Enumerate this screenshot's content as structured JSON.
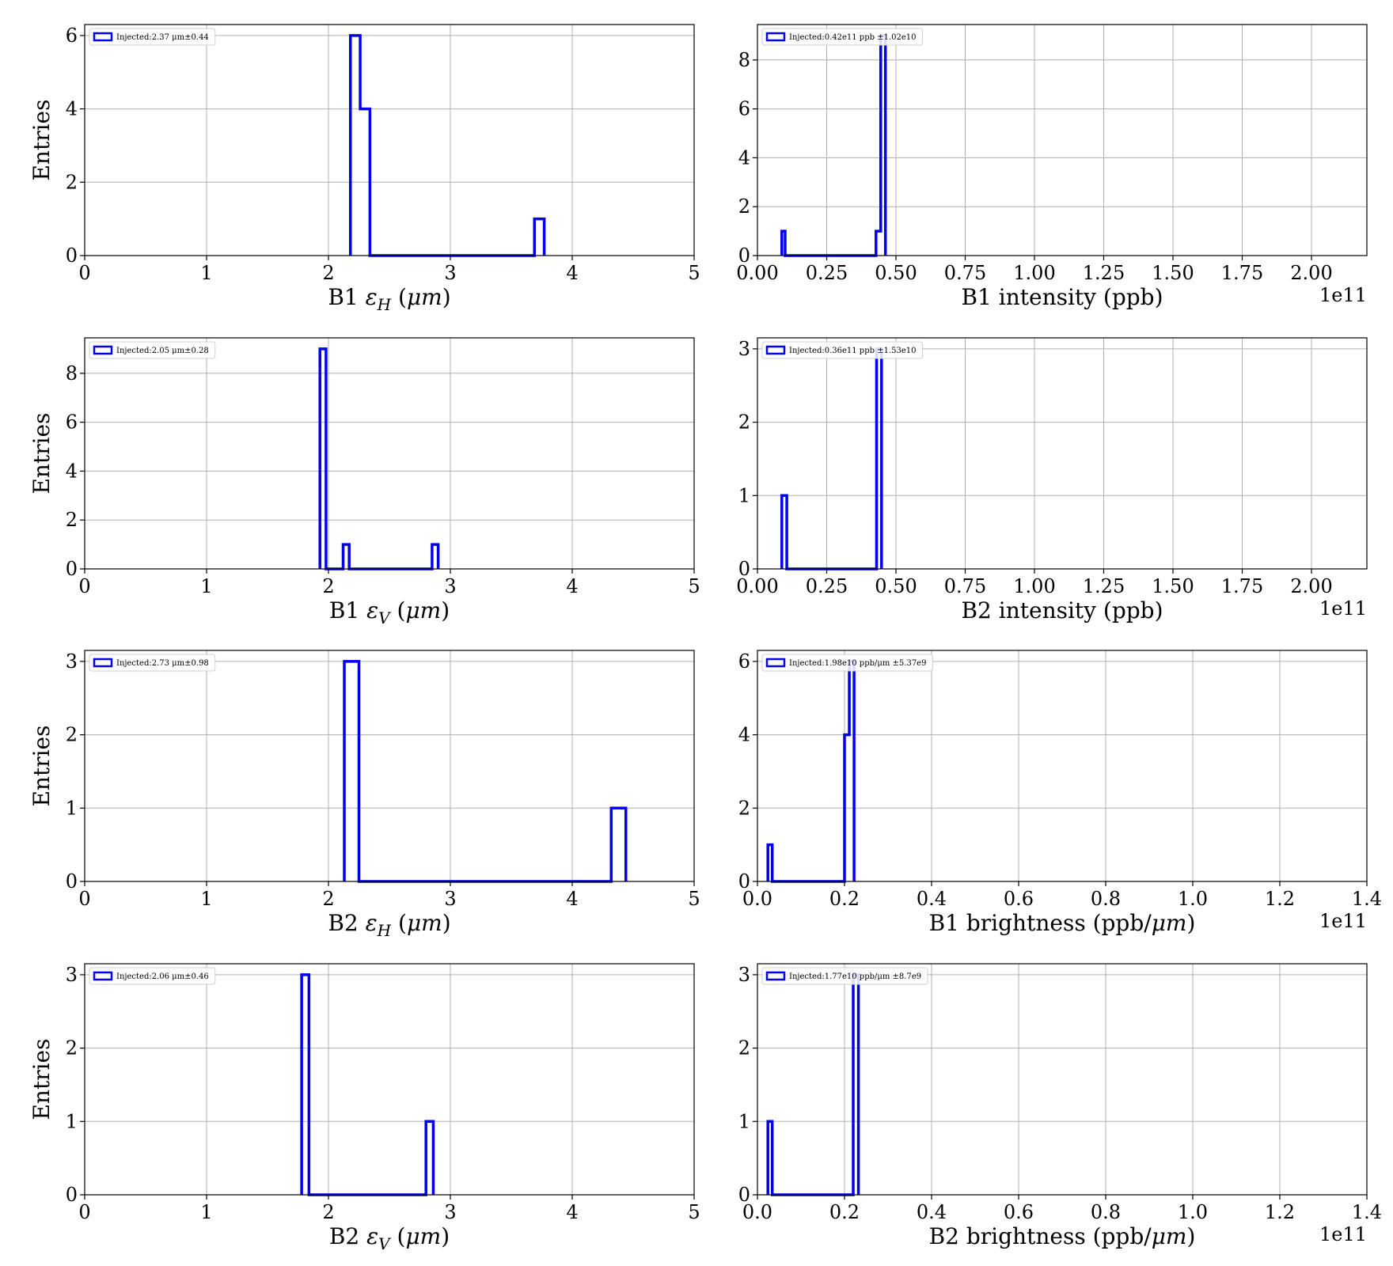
{
  "chart_data": [
    {
      "id": "b1-eh",
      "type": "histogram",
      "xlabel": {
        "pre": "B1 ",
        "sym": "ε",
        "sub": "H",
        "post": " (",
        "unit_it": "μm",
        "tail": ")"
      },
      "ylabel": "Entries",
      "xlim": [
        0,
        5
      ],
      "ylim": [
        0,
        6.3
      ],
      "xticks": [
        0,
        1,
        2,
        3,
        4,
        5
      ],
      "xtick_labels": [
        "0",
        "1",
        "2",
        "3",
        "4",
        "5"
      ],
      "yticks": [
        0,
        2,
        4,
        6
      ],
      "ytick_labels": [
        "0",
        "2",
        "4",
        "6"
      ],
      "offset_text": "",
      "grid": true,
      "legend": {
        "location": "upper-left",
        "label": "Injected:2.37 μm±0.44"
      },
      "color": "#0000ee",
      "bins": [
        [
          2.18,
          2.26,
          6
        ],
        [
          2.26,
          2.34,
          4
        ],
        [
          2.34,
          3.69,
          0
        ],
        [
          3.69,
          3.77,
          1
        ]
      ]
    },
    {
      "id": "b1-intensity",
      "type": "histogram",
      "xlabel": {
        "pre": "B1 intensity (ppb)"
      },
      "ylabel": "",
      "xlim": [
        0,
        2.2
      ],
      "ylim": [
        0,
        9.45
      ],
      "xticks": [
        0,
        0.25,
        0.5,
        0.75,
        1.0,
        1.25,
        1.5,
        1.75,
        2.0
      ],
      "xtick_labels": [
        "0.00",
        "0.25",
        "0.50",
        "0.75",
        "1.00",
        "1.25",
        "1.50",
        "1.75",
        "2.00"
      ],
      "yticks": [
        0,
        2,
        4,
        6,
        8
      ],
      "ytick_labels": [
        "0",
        "2",
        "4",
        "6",
        "8"
      ],
      "offset_text": "1e11",
      "grid": true,
      "legend": {
        "location": "upper-left",
        "label": "Injected:0.42e11 ppb ±1.02e10"
      },
      "color": "#0000ee",
      "bins": [
        [
          0.088,
          0.1,
          1
        ],
        [
          0.1,
          0.428,
          0
        ],
        [
          0.428,
          0.445,
          1
        ],
        [
          0.445,
          0.462,
          9
        ]
      ]
    },
    {
      "id": "b1-ev",
      "type": "histogram",
      "xlabel": {
        "pre": "B1 ",
        "sym": "ε",
        "sub": "V",
        "post": " (",
        "unit_it": "μm",
        "tail": ")"
      },
      "ylabel": "Entries",
      "xlim": [
        0,
        5
      ],
      "ylim": [
        0,
        9.45
      ],
      "xticks": [
        0,
        1,
        2,
        3,
        4,
        5
      ],
      "xtick_labels": [
        "0",
        "1",
        "2",
        "3",
        "4",
        "5"
      ],
      "yticks": [
        0,
        2,
        4,
        6,
        8
      ],
      "ytick_labels": [
        "0",
        "2",
        "4",
        "6",
        "8"
      ],
      "offset_text": "",
      "grid": true,
      "legend": {
        "location": "upper-left",
        "label": "Injected:2.05 μm±0.28"
      },
      "color": "#0000ee",
      "bins": [
        [
          1.93,
          1.98,
          9
        ],
        [
          1.98,
          2.12,
          0
        ],
        [
          2.12,
          2.17,
          1
        ],
        [
          2.17,
          2.85,
          0
        ],
        [
          2.85,
          2.9,
          1
        ]
      ]
    },
    {
      "id": "b2-intensity",
      "type": "histogram",
      "xlabel": {
        "pre": "B2 intensity (ppb)"
      },
      "ylabel": "",
      "xlim": [
        0,
        2.2
      ],
      "ylim": [
        0,
        3.15
      ],
      "xticks": [
        0,
        0.25,
        0.5,
        0.75,
        1.0,
        1.25,
        1.5,
        1.75,
        2.0
      ],
      "xtick_labels": [
        "0.00",
        "0.25",
        "0.50",
        "0.75",
        "1.00",
        "1.25",
        "1.50",
        "1.75",
        "2.00"
      ],
      "yticks": [
        0,
        1,
        2,
        3
      ],
      "ytick_labels": [
        "0",
        "1",
        "2",
        "3"
      ],
      "offset_text": "1e11",
      "grid": true,
      "legend": {
        "location": "upper-left",
        "label": "Injected:0.36e11 ppb ±1.53e10"
      },
      "color": "#0000ee",
      "bins": [
        [
          0.088,
          0.106,
          1
        ],
        [
          0.106,
          0.43,
          0
        ],
        [
          0.43,
          0.448,
          3
        ]
      ]
    },
    {
      "id": "b2-eh",
      "type": "histogram",
      "xlabel": {
        "pre": "B2 ",
        "sym": "ε",
        "sub": "H",
        "post": " (",
        "unit_it": "μm",
        "tail": ")"
      },
      "ylabel": "Entries",
      "xlim": [
        0,
        5
      ],
      "ylim": [
        0,
        3.15
      ],
      "xticks": [
        0,
        1,
        2,
        3,
        4,
        5
      ],
      "xtick_labels": [
        "0",
        "1",
        "2",
        "3",
        "4",
        "5"
      ],
      "yticks": [
        0,
        1,
        2,
        3
      ],
      "ytick_labels": [
        "0",
        "1",
        "2",
        "3"
      ],
      "offset_text": "",
      "grid": true,
      "legend": {
        "location": "upper-left",
        "label": "Injected:2.73 μm±0.98"
      },
      "color": "#0000ee",
      "bins": [
        [
          2.13,
          2.25,
          3
        ],
        [
          2.25,
          4.32,
          0
        ],
        [
          4.32,
          4.44,
          1
        ]
      ]
    },
    {
      "id": "b1-brightness",
      "type": "histogram",
      "xlabel": {
        "pre": "B1 brightness (ppb/",
        "unit_it": "μm",
        "tail": ")"
      },
      "ylabel": "",
      "xlim": [
        0,
        1.4
      ],
      "ylim": [
        0,
        6.3
      ],
      "xticks": [
        0,
        0.2,
        0.4,
        0.6,
        0.8,
        1.0,
        1.2,
        1.4
      ],
      "xtick_labels": [
        "0.0",
        "0.2",
        "0.4",
        "0.6",
        "0.8",
        "1.0",
        "1.2",
        "1.4"
      ],
      "yticks": [
        0,
        2,
        4,
        6
      ],
      "ytick_labels": [
        "0",
        "2",
        "4",
        "6"
      ],
      "offset_text": "1e11",
      "grid": true,
      "legend": {
        "location": "upper-left",
        "label": "Injected:1.98e10 ppb/μm ±5.37e9"
      },
      "color": "#0000ee",
      "bins": [
        [
          0.024,
          0.034,
          1
        ],
        [
          0.034,
          0.2,
          0
        ],
        [
          0.2,
          0.211,
          4
        ],
        [
          0.211,
          0.222,
          6
        ]
      ]
    },
    {
      "id": "b2-ev",
      "type": "histogram",
      "xlabel": {
        "pre": "B2 ",
        "sym": "ε",
        "sub": "V",
        "post": " (",
        "unit_it": "μm",
        "tail": ")"
      },
      "ylabel": "Entries",
      "xlim": [
        0,
        5
      ],
      "ylim": [
        0,
        3.15
      ],
      "xticks": [
        0,
        1,
        2,
        3,
        4,
        5
      ],
      "xtick_labels": [
        "0",
        "1",
        "2",
        "3",
        "4",
        "5"
      ],
      "yticks": [
        0,
        1,
        2,
        3
      ],
      "ytick_labels": [
        "0",
        "1",
        "2",
        "3"
      ],
      "offset_text": "",
      "grid": true,
      "legend": {
        "location": "upper-left",
        "label": "Injected:2.06 μm±0.46"
      },
      "color": "#0000ee",
      "bins": [
        [
          1.78,
          1.84,
          3
        ],
        [
          1.84,
          2.8,
          0
        ],
        [
          2.8,
          2.86,
          1
        ]
      ]
    },
    {
      "id": "b2-brightness",
      "type": "histogram",
      "xlabel": {
        "pre": "B2 brightness (ppb/",
        "unit_it": "μm",
        "tail": ")"
      },
      "ylabel": "",
      "xlim": [
        0,
        1.4
      ],
      "ylim": [
        0,
        3.15
      ],
      "xticks": [
        0,
        0.2,
        0.4,
        0.6,
        0.8,
        1.0,
        1.2,
        1.4
      ],
      "xtick_labels": [
        "0.0",
        "0.2",
        "0.4",
        "0.6",
        "0.8",
        "1.0",
        "1.2",
        "1.4"
      ],
      "yticks": [
        0,
        1,
        2,
        3
      ],
      "ytick_labels": [
        "0",
        "1",
        "2",
        "3"
      ],
      "offset_text": "1e11",
      "grid": true,
      "legend": {
        "location": "upper-left",
        "label": "Injected:1.77e10 ppb/μm ±8.7e9"
      },
      "color": "#0000ee",
      "bins": [
        [
          0.024,
          0.034,
          1
        ],
        [
          0.034,
          0.22,
          0
        ],
        [
          0.22,
          0.232,
          3
        ]
      ]
    }
  ]
}
